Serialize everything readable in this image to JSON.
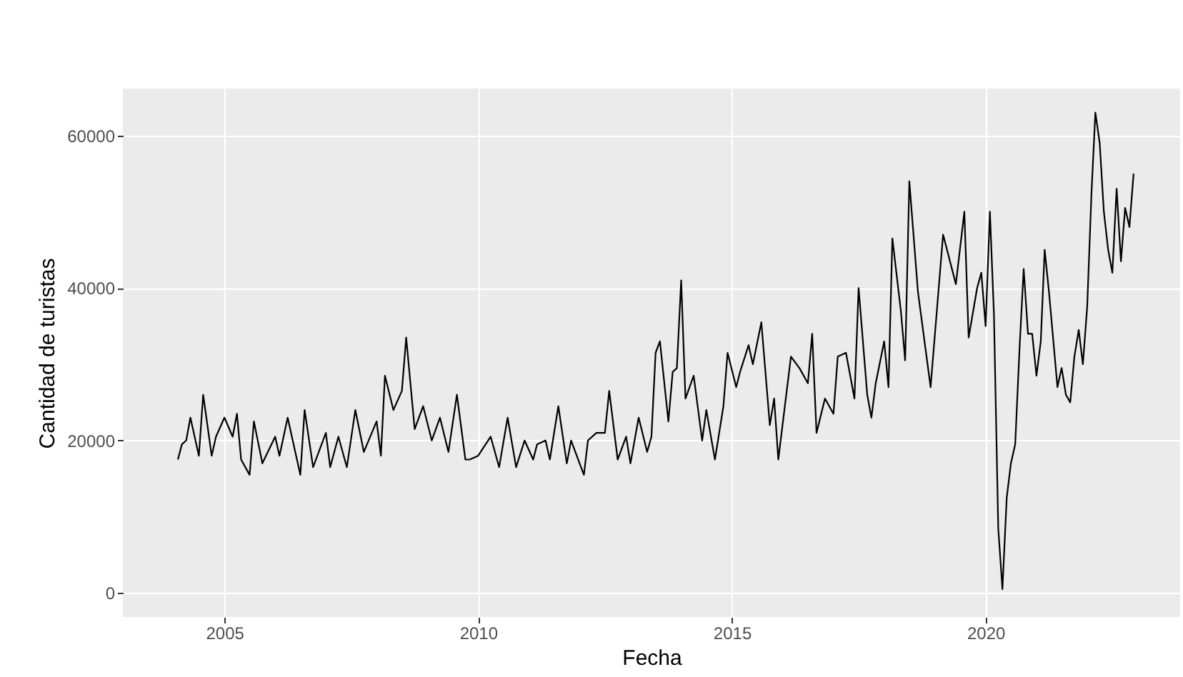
{
  "chart_data": {
    "type": "line",
    "xlabel": "Fecha",
    "ylabel": "Cantidad de turistas",
    "x": [
      "2004-02",
      "2004-03",
      "2004-04",
      "2004-05",
      "2004-07",
      "2004-08",
      "2004-10",
      "2004-11",
      "2005-01",
      "2005-03",
      "2005-04",
      "2005-05",
      "2005-07",
      "2005-08",
      "2005-10",
      "2006-01",
      "2006-02",
      "2006-04",
      "2006-07",
      "2006-08",
      "2006-10",
      "2007-01",
      "2007-02",
      "2007-04",
      "2007-06",
      "2007-08",
      "2007-10",
      "2008-01",
      "2008-02",
      "2008-03",
      "2008-05",
      "2008-07",
      "2008-08",
      "2008-10",
      "2008-12",
      "2009-02",
      "2009-04",
      "2009-06",
      "2009-08",
      "2009-10",
      "2009-11",
      "2010-01",
      "2010-04",
      "2010-06",
      "2010-08",
      "2010-10",
      "2010-12",
      "2011-02",
      "2011-03",
      "2011-05",
      "2011-06",
      "2011-08",
      "2011-10",
      "2011-11",
      "2012-01",
      "2012-02",
      "2012-03",
      "2012-05",
      "2012-07",
      "2012-08",
      "2012-10",
      "2012-12",
      "2013-01",
      "2013-03",
      "2013-05",
      "2013-06",
      "2013-07",
      "2013-08",
      "2013-10",
      "2013-11",
      "2013-12",
      "2014-01",
      "2014-02",
      "2014-04",
      "2014-06",
      "2014-07",
      "2014-09",
      "2014-11",
      "2014-12",
      "2015-02",
      "2015-03",
      "2015-05",
      "2015-06",
      "2015-08",
      "2015-10",
      "2015-11",
      "2015-12",
      "2016-03",
      "2016-05",
      "2016-07",
      "2016-08",
      "2016-09",
      "2016-11",
      "2017-01",
      "2017-02",
      "2017-04",
      "2017-06",
      "2017-07",
      "2017-09",
      "2017-10",
      "2017-11",
      "2018-01",
      "2018-02",
      "2018-03",
      "2018-05",
      "2018-06",
      "2018-07",
      "2018-09",
      "2018-12",
      "2019-03",
      "2019-06",
      "2019-08",
      "2019-09",
      "2019-11",
      "2019-12",
      "2020-01",
      "2020-02",
      "2020-03",
      "2020-04",
      "2020-05",
      "2020-06",
      "2020-07",
      "2020-08",
      "2020-09",
      "2020-10",
      "2020-11",
      "2020-12",
      "2021-01",
      "2021-02",
      "2021-03",
      "2021-04",
      "2021-06",
      "2021-07",
      "2021-08",
      "2021-09",
      "2021-10",
      "2021-11",
      "2021-12",
      "2022-01",
      "2022-02",
      "2022-03",
      "2022-04",
      "2022-05",
      "2022-06",
      "2022-07",
      "2022-08",
      "2022-09",
      "2022-10",
      "2022-11",
      "2022-12"
    ],
    "series": [
      {
        "color": "#000000",
        "values": [
          17500,
          19500,
          20000,
          23000,
          18000,
          26000,
          18000,
          20500,
          23000,
          20500,
          23500,
          17500,
          15500,
          22500,
          17000,
          20500,
          18000,
          23000,
          15500,
          24000,
          16500,
          21000,
          16500,
          20500,
          16500,
          24000,
          18500,
          22500,
          18000,
          28500,
          24000,
          26500,
          33500,
          21500,
          24500,
          20000,
          23000,
          18500,
          26000,
          17500,
          17500,
          18000,
          20500,
          16500,
          23000,
          16500,
          20000,
          17500,
          19500,
          20000,
          17500,
          24500,
          17000,
          20000,
          17000,
          15500,
          20000,
          21000,
          21000,
          26500,
          17500,
          20500,
          17000,
          23000,
          18500,
          20500,
          31500,
          33000,
          22500,
          29000,
          29500,
          41000,
          25500,
          28500,
          20000,
          24000,
          17500,
          24500,
          31500,
          27000,
          29000,
          32500,
          30000,
          35500,
          22000,
          25500,
          17500,
          31000,
          29500,
          27500,
          34000,
          21000,
          25500,
          23500,
          31000,
          31500,
          25500,
          40000,
          26000,
          23000,
          27500,
          33000,
          27000,
          46500,
          37000,
          30500,
          54000,
          39500,
          27000,
          47000,
          40500,
          50000,
          33500,
          40000,
          42000,
          35000,
          50000,
          36500,
          8500,
          500,
          12500,
          17000,
          19500,
          32000,
          42500,
          34000,
          34000,
          28500,
          33000,
          45000,
          39500,
          27000,
          29500,
          26000,
          25000,
          31000,
          34500,
          30000,
          37500,
          52500,
          63000,
          59000,
          50000,
          45000,
          42000,
          53000,
          43500,
          50500,
          48000,
          55000
        ]
      }
    ],
    "xlim": [
      "2003-01",
      "2023-11"
    ],
    "xticks": [
      "2005",
      "2010",
      "2015",
      "2020"
    ],
    "ylim": [
      -3150,
      66150
    ],
    "yticks": [
      0,
      20000,
      40000,
      60000
    ],
    "grid": true
  }
}
